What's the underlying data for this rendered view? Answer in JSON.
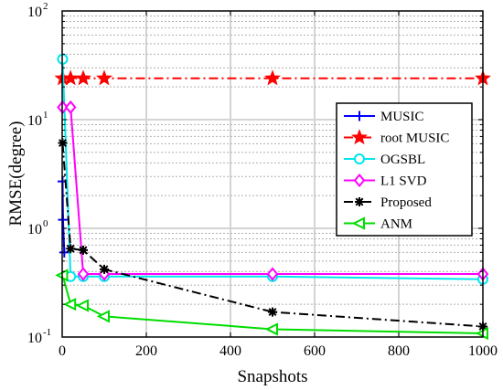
{
  "chart_data": {
    "type": "line",
    "xlabel": "Snapshots",
    "ylabel": "RMSE(degree)",
    "xlim": [
      0,
      1000
    ],
    "ylim": [
      0.1,
      100
    ],
    "yscale": "log",
    "grid": true,
    "legend_position": "right",
    "xticks": [
      0,
      200,
      400,
      600,
      800,
      1000
    ],
    "xtick_labels": [
      "0",
      "200",
      "400",
      "600",
      "800",
      "1000"
    ],
    "yticks": [
      0.1,
      1,
      10,
      100
    ],
    "ytick_base": "10",
    "ytick_exponents": [
      "-1",
      "0",
      "1",
      "2"
    ],
    "series": [
      {
        "name": "MUSIC",
        "color": "#0000ff",
        "marker": "plus",
        "dash": "solid",
        "x": [
          1,
          2,
          5
        ],
        "y": [
          2.7,
          1.2,
          0.6
        ]
      },
      {
        "name": "root MUSIC",
        "color": "#ff0000",
        "marker": "star",
        "dash": "dashdot",
        "x": [
          1,
          20,
          50,
          100,
          500,
          1000
        ],
        "y": [
          24,
          24,
          24,
          24,
          24,
          24
        ]
      },
      {
        "name": "OGSBL",
        "color": "#00e5ee",
        "marker": "circle",
        "dash": "solid",
        "x": [
          1,
          20,
          50,
          100,
          500,
          1000
        ],
        "y": [
          36,
          0.36,
          0.36,
          0.36,
          0.36,
          0.34
        ]
      },
      {
        "name": "L1 SVD",
        "color": "#ff00ff",
        "marker": "diamond",
        "dash": "solid",
        "x": [
          1,
          20,
          50,
          100,
          500,
          1000
        ],
        "y": [
          13,
          13,
          0.38,
          0.38,
          0.38,
          0.38
        ]
      },
      {
        "name": "Proposed",
        "color": "#000000",
        "marker": "asterisk",
        "dash": "dashdot",
        "x": [
          1,
          20,
          50,
          100,
          500,
          1000
        ],
        "y": [
          6.1,
          0.65,
          0.63,
          0.42,
          0.17,
          0.125
        ]
      },
      {
        "name": "ANM",
        "color": "#00dd00",
        "marker": "triangle-left",
        "dash": "solid",
        "x": [
          1,
          20,
          50,
          100,
          500,
          1000
        ],
        "y": [
          0.37,
          0.2,
          0.195,
          0.155,
          0.118,
          0.108
        ]
      }
    ]
  }
}
